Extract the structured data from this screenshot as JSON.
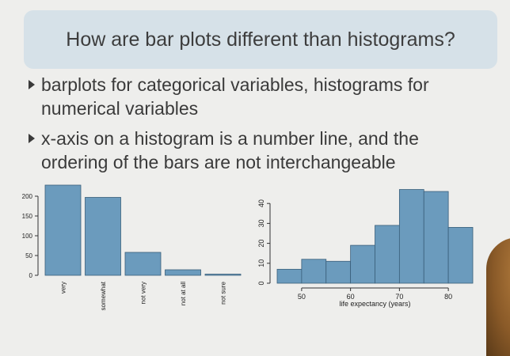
{
  "slide": {
    "title": "How are bar plots different than histograms?",
    "bullets": [
      [
        "barplots for categorical variables, histograms for",
        "numerical variables"
      ],
      [
        "x-axis on a histogram is a number line, and the",
        "ordering of the bars are not interchangeable"
      ]
    ]
  },
  "colors": {
    "bar": "#6b9bbd",
    "banner": "#d6e1e8"
  },
  "chart_data": [
    {
      "type": "bar",
      "categories": [
        "very",
        "somewhat",
        "not very",
        "not at all",
        "not sure"
      ],
      "values": [
        228,
        197,
        58,
        14,
        3
      ],
      "ylim": [
        0,
        230
      ],
      "yticks": [
        0,
        50,
        100,
        150,
        200
      ],
      "grid": false
    },
    {
      "type": "bar",
      "bins": [
        [
          45,
          50
        ],
        [
          50,
          55
        ],
        [
          55,
          60
        ],
        [
          60,
          65
        ],
        [
          65,
          70
        ],
        [
          70,
          75
        ],
        [
          75,
          80
        ],
        [
          80,
          85
        ]
      ],
      "values": [
        7,
        12,
        11,
        19,
        29,
        47,
        46,
        28
      ],
      "xlabel": "life expectancy (years)",
      "xticks": [
        50,
        60,
        70,
        80
      ],
      "yticks": [
        0,
        10,
        20,
        30,
        40
      ],
      "xlim": [
        45,
        85
      ],
      "ylim": [
        0,
        48
      ],
      "grid": false
    }
  ]
}
